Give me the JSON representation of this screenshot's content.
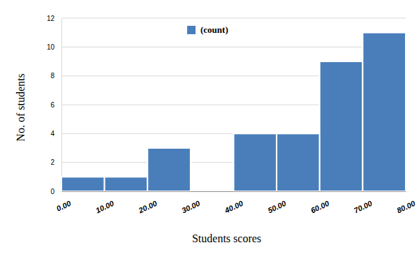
{
  "chart_data": {
    "type": "histogram",
    "x_label": "Students scores",
    "y_label": "No. of students",
    "bins": [
      0,
      10,
      20,
      30,
      40,
      50,
      60,
      70,
      80
    ],
    "series": [
      {
        "name": "(count)",
        "color": "#4a7ebb",
        "values": [
          1,
          1,
          3,
          0,
          4,
          4,
          9,
          11
        ]
      }
    ],
    "xlim": [
      0,
      80
    ],
    "xticks": [
      {
        "value": 0,
        "label": "0.00"
      },
      {
        "value": 10,
        "label": "10.00"
      },
      {
        "value": 20,
        "label": "20.00"
      },
      {
        "value": 30,
        "label": "30.00"
      },
      {
        "value": 40,
        "label": "40.00"
      },
      {
        "value": 50,
        "label": "50.00"
      },
      {
        "value": 60,
        "label": "60.00"
      },
      {
        "value": 70,
        "label": "70.00"
      },
      {
        "value": 80,
        "label": "80.00"
      }
    ],
    "ylim": [
      0,
      12
    ],
    "yticks": [
      0,
      2,
      4,
      6,
      8,
      10,
      12
    ],
    "grid": true,
    "legend": "top"
  }
}
